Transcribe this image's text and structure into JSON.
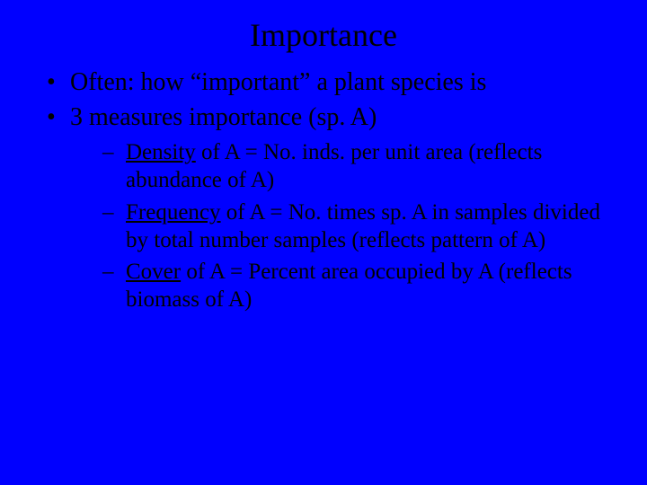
{
  "slide": {
    "background_color": "#0000ff",
    "text_color": "#000000",
    "font_family": "Times New Roman",
    "title": "Importance",
    "title_fontsize": 36,
    "body_fontsize": 28,
    "sub_fontsize": 25,
    "bullets": [
      {
        "text": "Often: how “important” a plant species is"
      },
      {
        "text": "3 measures importance (sp. A)"
      }
    ],
    "sub_bullets": [
      {
        "term": "Density",
        "rest": " of A = No. inds. per unit area (reflects abundance of A)"
      },
      {
        "term": "Frequency",
        "rest": " of A = No. times sp. A in samples divided by total number samples (reflects pattern of A)"
      },
      {
        "term": "Cover",
        "rest": " of A = Percent area occupied by A (reflects biomass of A)"
      }
    ]
  }
}
